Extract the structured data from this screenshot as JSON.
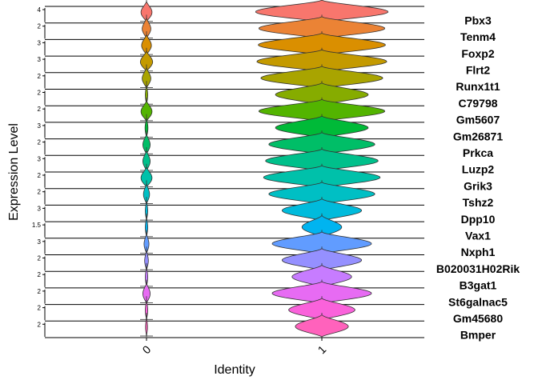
{
  "chart_data": {
    "type": "stacked-violin",
    "xlabel": "Identity",
    "ylabel": "Expression Level",
    "categories": [
      "0",
      "1"
    ],
    "genes": [
      {
        "name": "Pbx3",
        "color": "#F8766D",
        "ytick": "4",
        "w0": 0.45,
        "w1": 1.0
      },
      {
        "name": "Tenm4",
        "color": "#EB8335",
        "ytick": "2",
        "w0": 0.35,
        "w1": 0.95
      },
      {
        "name": "Foxp2",
        "color": "#DA8F00",
        "ytick": "3",
        "w0": 0.4,
        "w1": 0.96
      },
      {
        "name": "Flrt2",
        "color": "#C49A00",
        "ytick": "3",
        "w0": 0.5,
        "w1": 0.98
      },
      {
        "name": "Runx1t1",
        "color": "#A9A400",
        "ytick": "2",
        "w0": 0.35,
        "w1": 0.92
      },
      {
        "name": "C79798",
        "color": "#86AC00",
        "ytick": "2",
        "w0": 0.1,
        "w1": 0.7
      },
      {
        "name": "Gm5607",
        "color": "#53B400",
        "ytick": "2",
        "w0": 0.45,
        "w1": 0.95
      },
      {
        "name": "Gm26871",
        "color": "#00BA38",
        "ytick": "3",
        "w0": 0.12,
        "w1": 0.7
      },
      {
        "name": "Prkca",
        "color": "#00BE67",
        "ytick": "2",
        "w0": 0.3,
        "w1": 0.8
      },
      {
        "name": "Luzp2",
        "color": "#00C08B",
        "ytick": "3",
        "w0": 0.3,
        "w1": 0.85
      },
      {
        "name": "Grik3",
        "color": "#00C1AA",
        "ytick": "2",
        "w0": 0.45,
        "w1": 0.88
      },
      {
        "name": "Tshz2",
        "color": "#00BFC4",
        "ytick": "2",
        "w0": 0.25,
        "w1": 0.8
      },
      {
        "name": "Dpp10",
        "color": "#00BBDC",
        "ytick": "3",
        "w0": 0.1,
        "w1": 0.6
      },
      {
        "name": "Vax1",
        "color": "#00B4F0",
        "ytick": "1.5",
        "w0": 0.1,
        "w1": 0.3
      },
      {
        "name": "Nxph1",
        "color": "#619CFF",
        "ytick": "3",
        "w0": 0.2,
        "w1": 0.75
      },
      {
        "name": "B020031H02Rik",
        "color": "#9590FF",
        "ytick": "2",
        "w0": 0.15,
        "w1": 0.6
      },
      {
        "name": "B3gat1",
        "color": "#C77CFF",
        "ytick": "2",
        "w0": 0.1,
        "w1": 0.45
      },
      {
        "name": "St6galnac5",
        "color": "#E76BF3",
        "ytick": "2",
        "w0": 0.3,
        "w1": 0.75
      },
      {
        "name": "Gm45680",
        "color": "#FA62DB",
        "ytick": "2",
        "w0": 0.1,
        "w1": 0.5
      },
      {
        "name": "Bmper",
        "color": "#FF62BC",
        "ytick": "2",
        "w0": 0.08,
        "w1": 0.4
      }
    ]
  }
}
